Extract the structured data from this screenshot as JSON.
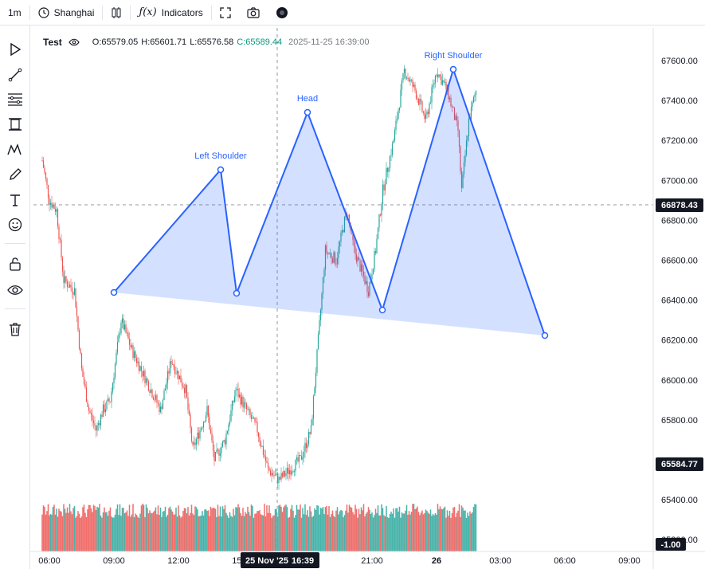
{
  "toolbar": {
    "interval": "1m",
    "timezone": "Shanghai",
    "indicators_label": "Indicators",
    "fx_label": "ƒ(x)"
  },
  "legend": {
    "symbol": "Test",
    "open": "O:65579.05",
    "high": "H:65601.71",
    "low": "L:65576.58",
    "close": "C:65589.44",
    "timestamp": "2025-11-25 16:39:00"
  },
  "price_axis": {
    "ticks": [
      "67600.00",
      "67400.00",
      "67200.00",
      "67000.00",
      "66800.00",
      "66600.00",
      "66400.00",
      "66200.00",
      "66000.00",
      "65800.00",
      "65400.00",
      "65200.00"
    ],
    "crosshair_price": "66878.43",
    "last_price": "65584.77",
    "volume_value": "-1.00"
  },
  "time_axis": {
    "ticks": [
      "06:00",
      "09:00",
      "12:00",
      "15:00",
      "21:00",
      "26",
      "03:00",
      "06:00",
      "09:00"
    ],
    "crosshair_date": "25 Nov '25",
    "crosshair_time": "16:39"
  },
  "pattern": {
    "left_shoulder": "Left Shoulder",
    "head": "Head",
    "right_shoulder": "Right Shoulder"
  },
  "colors": {
    "up": "#26a69a",
    "down": "#ef5350",
    "pattern_line": "#2962ff",
    "pattern_fill": "#2962ff33",
    "last_price_tag": "#131722",
    "close_text": "#089981"
  },
  "chart_data": {
    "type": "candlestick",
    "x_range": [
      "05:30",
      "10:10 (next day)"
    ],
    "y_range": [
      65180,
      67720
    ],
    "last_price": 65584.77,
    "price_path": [
      {
        "t": "05:40",
        "p": 67100
      },
      {
        "t": "06:00",
        "p": 66900
      },
      {
        "t": "06:20",
        "p": 66850
      },
      {
        "t": "06:40",
        "p": 66500
      },
      {
        "t": "07:10",
        "p": 66450
      },
      {
        "t": "07:30",
        "p": 66050
      },
      {
        "t": "07:50",
        "p": 65850
      },
      {
        "t": "08:10",
        "p": 65750
      },
      {
        "t": "08:30",
        "p": 65850
      },
      {
        "t": "08:50",
        "p": 65900
      },
      {
        "t": "09:20",
        "p": 66300
      },
      {
        "t": "09:50",
        "p": 66150
      },
      {
        "t": "10:30",
        "p": 66000
      },
      {
        "t": "11:10",
        "p": 65850
      },
      {
        "t": "11:40",
        "p": 66100
      },
      {
        "t": "12:20",
        "p": 65950
      },
      {
        "t": "12:40",
        "p": 65650
      },
      {
        "t": "13:00",
        "p": 65750
      },
      {
        "t": "13:20",
        "p": 65850
      },
      {
        "t": "13:40",
        "p": 65600
      },
      {
        "t": "14:10",
        "p": 65700
      },
      {
        "t": "14:40",
        "p": 65950
      },
      {
        "t": "15:10",
        "p": 65850
      },
      {
        "t": "15:40",
        "p": 65750
      },
      {
        "t": "16:10",
        "p": 65550
      },
      {
        "t": "16:40",
        "p": 65500
      },
      {
        "t": "17:10",
        "p": 65550
      },
      {
        "t": "17:40",
        "p": 65600
      },
      {
        "t": "18:10",
        "p": 65750
      },
      {
        "t": "18:30",
        "p": 66200
      },
      {
        "t": "18:50",
        "p": 66650
      },
      {
        "t": "19:20",
        "p": 66600
      },
      {
        "t": "19:50",
        "p": 66850
      },
      {
        "t": "20:10",
        "p": 66650
      },
      {
        "t": "20:30",
        "p": 66550
      },
      {
        "t": "20:50",
        "p": 66450
      },
      {
        "t": "21:10",
        "p": 66650
      },
      {
        "t": "21:30",
        "p": 66950
      },
      {
        "t": "22:00",
        "p": 67200
      },
      {
        "t": "22:30",
        "p": 67550
      },
      {
        "t": "23:00",
        "p": 67450
      },
      {
        "t": "23:30",
        "p": 67300
      },
      {
        "t": "00:00",
        "p": 67550
      },
      {
        "t": "00:30",
        "p": 67450
      },
      {
        "t": "01:00",
        "p": 67250
      },
      {
        "t": "01:10",
        "p": 66950
      },
      {
        "t": "01:30",
        "p": 67300
      },
      {
        "t": "01:50",
        "p": 67450
      }
    ],
    "pattern_points": [
      {
        "t": "09:00",
        "p": 66440
      },
      {
        "t": "14:00",
        "p": 67060
      },
      {
        "t": "15:00",
        "p": 66440
      },
      {
        "t": "18:30",
        "p": 67340
      },
      {
        "t": "22:00",
        "p": 66350
      },
      {
        "t": "01:00",
        "p": 67560
      },
      {
        "t": "05:00",
        "p": 66230
      }
    ]
  }
}
